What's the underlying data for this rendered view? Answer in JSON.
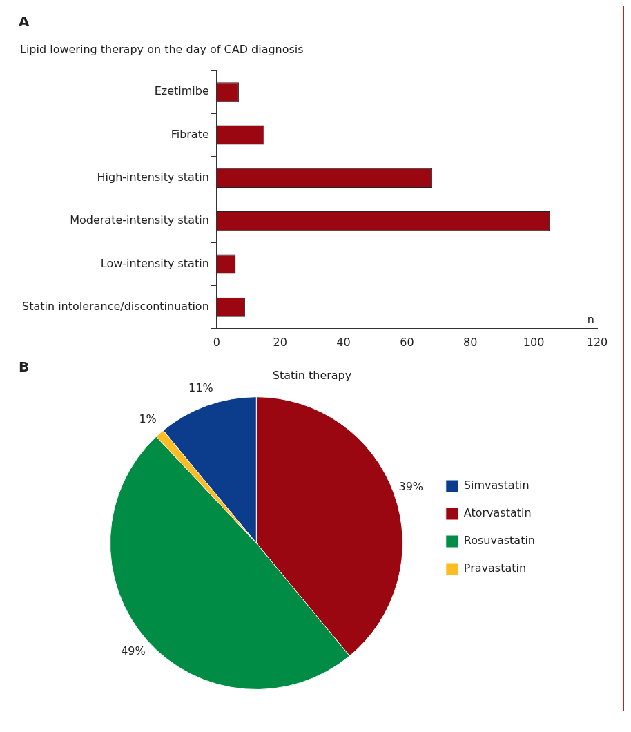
{
  "chart_data": [
    {
      "type": "bar",
      "orientation": "horizontal",
      "title": "Lipid lowering therapy on the day of CAD diagnosis",
      "annotations": [
        "A"
      ],
      "xlabel": "n",
      "categories": [
        "Ezetimibe",
        "Fibrate",
        "High-intensity statin",
        "Moderate-intensity statin",
        "Low-intensity statin",
        "Statin intolerance/discontinuation"
      ],
      "values": [
        7,
        15,
        68,
        105,
        6,
        9
      ],
      "color": "#9b0711",
      "xlim": [
        0,
        120
      ],
      "xticks": [
        0,
        20,
        40,
        60,
        80,
        100,
        120
      ],
      "grid": false,
      "legend": false
    },
    {
      "type": "pie",
      "title": "Statin therapy",
      "annotations": [
        "B"
      ],
      "categories": [
        "Simvastatin",
        "Atorvastatin",
        "Rosuvastatin",
        "Pravastatin"
      ],
      "values": [
        11,
        39,
        49,
        1
      ],
      "colors": [
        "#0b3d8c",
        "#9b0711",
        "#008c45",
        "#fdbd22"
      ],
      "value_labels": [
        "11%",
        "39%",
        "49%",
        "1%"
      ],
      "legend": "right"
    }
  ]
}
